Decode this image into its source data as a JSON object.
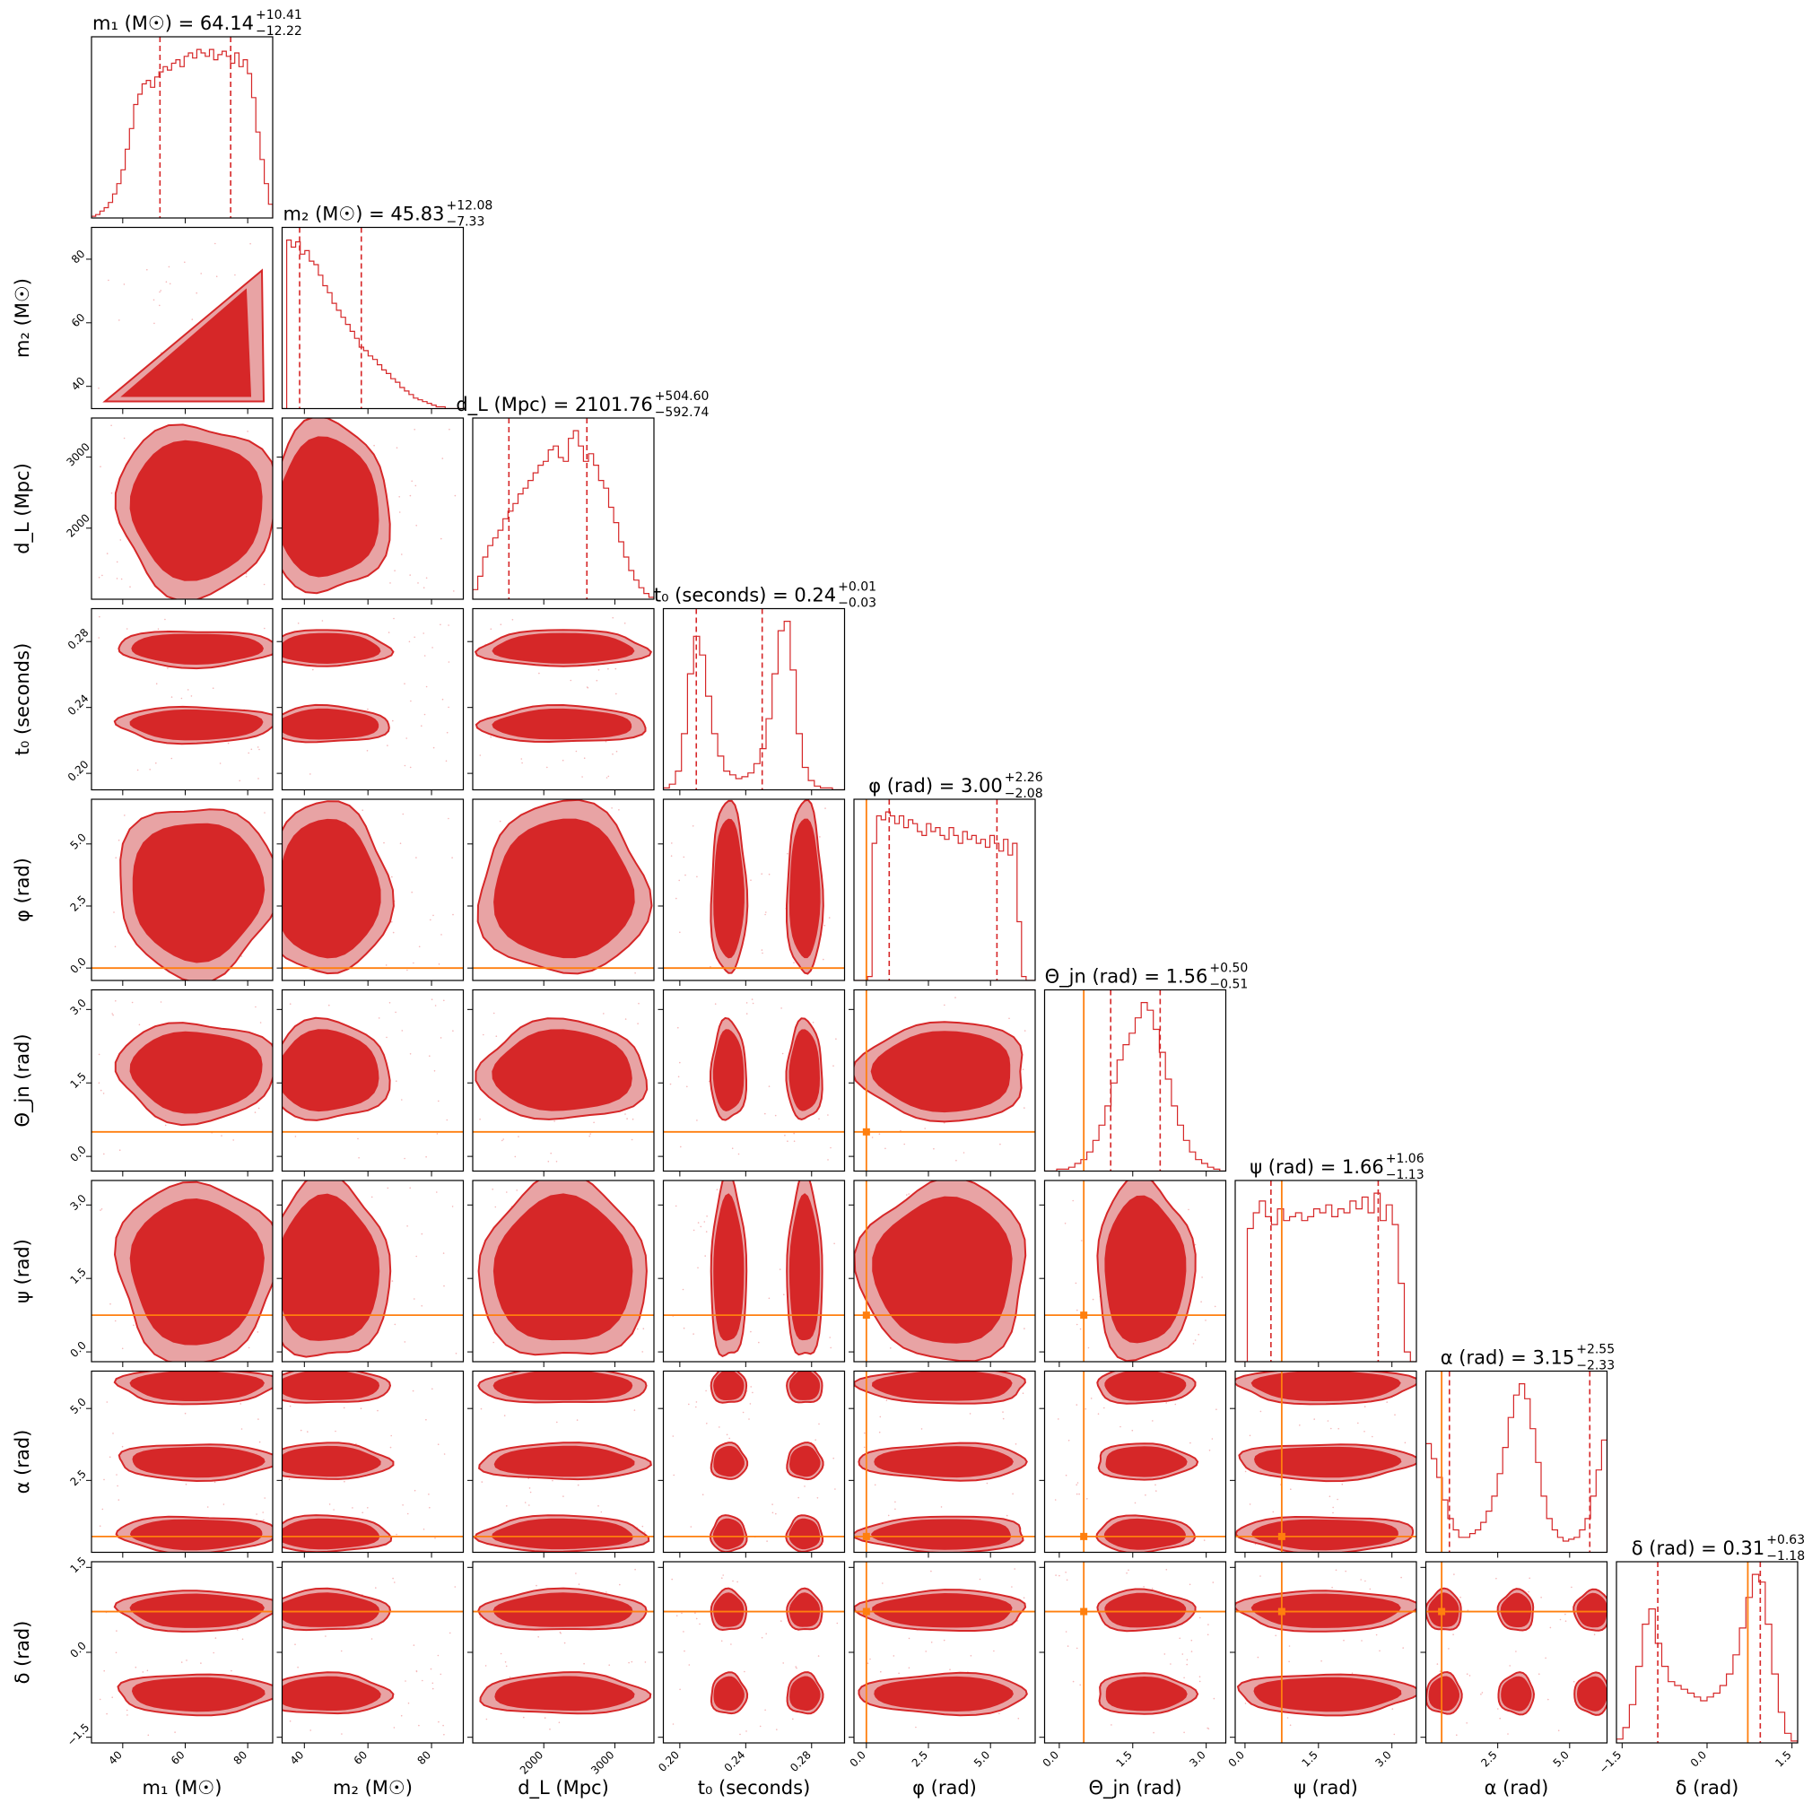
{
  "chart_data": {
    "type": "corner",
    "colors": {
      "posterior": "#d62728",
      "posterior_light": "#e8a3a4",
      "truth": "#ff7f0e"
    },
    "parameters": [
      {
        "key": "m1",
        "label": "m_1 (M_⊙)",
        "axis_label": "m₁ (M☉)",
        "range": [
          30,
          88
        ],
        "ticks": [
          40,
          60,
          80
        ],
        "tick_labels": [
          "40",
          "60",
          "80"
        ],
        "median": 64.14,
        "err_plus": 10.41,
        "err_minus": 12.22,
        "title": "m₁ (M☉) = 64.14",
        "title_plus": "+10.41",
        "title_minus": "−12.22",
        "hist": [
          1,
          2,
          4,
          6,
          9,
          14,
          20,
          28,
          40,
          52,
          66,
          72,
          78,
          80,
          76,
          82,
          85,
          88,
          86,
          90,
          92,
          88,
          94,
          96,
          93,
          98,
          96,
          94,
          98,
          92,
          95,
          97,
          94,
          90,
          96,
          88,
          92,
          84,
          70,
          50,
          34,
          20,
          8
        ],
        "truth": null
      },
      {
        "key": "m2",
        "label": "m_2 (M_⊙)",
        "axis_label": "m₂ (M☉)",
        "range": [
          33,
          90
        ],
        "ticks": [
          40,
          60,
          80
        ],
        "tick_labels": [
          "40",
          "60",
          "80"
        ],
        "median": 45.83,
        "err_plus": 12.08,
        "err_minus": 7.33,
        "title": "m₂ (M☉) = 45.83",
        "title_plus": "+12.08",
        "title_minus": "−7.33",
        "hist": [
          0,
          96,
          92,
          95,
          88,
          90,
          84,
          82,
          76,
          70,
          66,
          60,
          56,
          52,
          48,
          44,
          40,
          35,
          33,
          30,
          28,
          25,
          22,
          20,
          17,
          15,
          12,
          10,
          8,
          6,
          5,
          4,
          3,
          2,
          1,
          1,
          0,
          0,
          0,
          0
        ],
        "truth": null
      },
      {
        "key": "dL",
        "label": "d_L (Mpc)",
        "axis_label": "d_L (Mpc)",
        "range": [
          1000,
          3550
        ],
        "ticks": [
          2000,
          3000
        ],
        "tick_labels": [
          "2000",
          "3000"
        ],
        "median": 2101.76,
        "err_plus": 504.6,
        "err_minus": 592.74,
        "title": "d_L (Mpc) = 2101.76",
        "title_plus": "+504.60",
        "title_minus": "−592.74",
        "hist": [
          5,
          12,
          22,
          28,
          32,
          36,
          42,
          46,
          50,
          55,
          58,
          62,
          66,
          70,
          72,
          78,
          80,
          74,
          72,
          84,
          88,
          80,
          72,
          76,
          70,
          62,
          58,
          48,
          40,
          30,
          22,
          15,
          10,
          6,
          3,
          1
        ],
        "truth": null
      },
      {
        "key": "t0",
        "label": "t_0 (seconds)",
        "axis_label": "t₀ (seconds)",
        "range": [
          0.19,
          0.3
        ],
        "ticks": [
          0.2,
          0.24,
          0.28
        ],
        "tick_labels": [
          "0.20",
          "0.24",
          "0.28"
        ],
        "median": 0.24,
        "err_plus": 0.01,
        "err_minus": 0.03,
        "title": "t₀ (seconds) = 0.24",
        "title_plus": "+0.01",
        "title_minus": "−0.03",
        "hist": [
          1,
          3,
          10,
          30,
          62,
          82,
          72,
          50,
          30,
          18,
          10,
          8,
          6,
          7,
          9,
          14,
          22,
          38,
          62,
          85,
          90,
          64,
          30,
          12,
          5,
          2,
          1,
          1,
          0,
          0
        ],
        "truth": null
      },
      {
        "key": "phi",
        "label": "φ (rad)",
        "axis_label": "φ (rad)",
        "range": [
          -0.5,
          6.8
        ],
        "ticks": [
          0,
          2.5,
          5
        ],
        "tick_labels": [
          "0.0",
          "2.5",
          "5.0"
        ],
        "median": 3.0,
        "err_plus": 2.26,
        "err_minus": 2.08,
        "title": "φ (rad) = 3.00",
        "title_plus": "+2.26",
        "title_minus": "−2.08",
        "hist": [
          0,
          0,
          0,
          2,
          70,
          84,
          82,
          86,
          84,
          80,
          84,
          78,
          82,
          80,
          76,
          74,
          80,
          76,
          78,
          74,
          72,
          78,
          74,
          70,
          76,
          72,
          74,
          70,
          72,
          68,
          74,
          70,
          66,
          72,
          64,
          70,
          30,
          2,
          0,
          0
        ],
        "truth": 0.0
      },
      {
        "key": "theta_jn",
        "label": "Θ_jn (rad)",
        "axis_label": "Θ_jn (rad)",
        "range": [
          -0.3,
          3.4
        ],
        "ticks": [
          0,
          1.5,
          3
        ],
        "tick_labels": [
          "0.0",
          "1.5",
          "3.0"
        ],
        "median": 1.56,
        "err_plus": 0.5,
        "err_minus": 0.51,
        "title": "Θ_jn (rad) = 1.56",
        "title_plus": "+0.50",
        "title_minus": "−0.51",
        "hist": [
          0,
          0,
          1,
          1,
          2,
          4,
          6,
          10,
          16,
          24,
          34,
          46,
          58,
          66,
          72,
          80,
          88,
          84,
          74,
          62,
          48,
          34,
          24,
          16,
          10,
          6,
          4,
          2,
          1,
          0
        ],
        "truth": 0.5
      },
      {
        "key": "psi",
        "label": "ψ (rad)",
        "axis_label": "ψ (rad)",
        "range": [
          -0.2,
          3.5
        ],
        "ticks": [
          0,
          1.5,
          3
        ],
        "tick_labels": [
          "0.0",
          "1.5",
          "3.0"
        ],
        "median": 1.66,
        "err_plus": 1.06,
        "err_minus": 1.13,
        "title": "ψ (rad) = 1.66",
        "title_plus": "+1.06",
        "title_minus": "−1.13",
        "hist": [
          0,
          0,
          68,
          76,
          82,
          74,
          70,
          78,
          72,
          74,
          76,
          72,
          74,
          78,
          76,
          80,
          74,
          78,
          76,
          82,
          78,
          84,
          76,
          86,
          72,
          80,
          70,
          40,
          5,
          0
        ],
        "truth": 0.75
      },
      {
        "key": "alpha",
        "label": "α (rad)",
        "axis_label": "α (rad)",
        "range": [
          0,
          6.3
        ],
        "ticks": [
          2.5,
          5
        ],
        "tick_labels": [
          "2.5",
          "5.0"
        ],
        "median": 3.15,
        "err_plus": 2.55,
        "err_minus": 2.33,
        "title": "α (rad) = 3.15",
        "title_plus": "+2.55",
        "title_minus": "−2.33",
        "hist": [
          58,
          50,
          40,
          28,
          18,
          12,
          8,
          8,
          10,
          12,
          16,
          22,
          30,
          42,
          56,
          72,
          84,
          90,
          82,
          66,
          48,
          30,
          18,
          12,
          8,
          6,
          7,
          8,
          12,
          18,
          30,
          44,
          60
        ],
        "truth": 0.55
      },
      {
        "key": "delta",
        "label": "δ (rad)",
        "axis_label": "δ (rad)",
        "range": [
          -1.6,
          1.6
        ],
        "ticks": [
          -1.5,
          0,
          1.5
        ],
        "tick_labels": [
          "−1.5",
          "0.0",
          "1.5"
        ],
        "median": 0.31,
        "err_plus": 0.63,
        "err_minus": 1.18,
        "title": "δ (rad) = 0.31",
        "title_plus": "+0.63",
        "title_minus": "−1.18",
        "hist": [
          2,
          8,
          20,
          40,
          62,
          70,
          52,
          40,
          32,
          30,
          28,
          26,
          24,
          22,
          24,
          26,
          30,
          36,
          46,
          60,
          76,
          88,
          84,
          62,
          36,
          16,
          5,
          1
        ],
        "truth": 0.72
      }
    ]
  }
}
